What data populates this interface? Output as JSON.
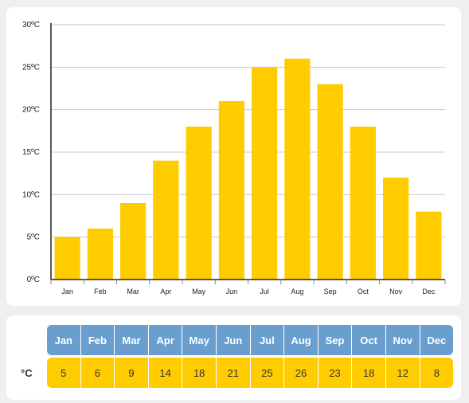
{
  "chart_data": {
    "type": "bar",
    "categories": [
      "Jan",
      "Feb",
      "Mar",
      "Apr",
      "May",
      "Jun",
      "Jul",
      "Aug",
      "Sep",
      "Oct",
      "Nov",
      "Dec"
    ],
    "values": [
      5,
      6,
      9,
      14,
      18,
      21,
      25,
      26,
      23,
      18,
      12,
      8
    ],
    "ylim": [
      0,
      30
    ],
    "yticks": [
      0,
      5,
      10,
      15,
      20,
      25,
      30
    ],
    "ytick_labels": [
      "0ºC",
      "5ºC",
      "10ºC",
      "15ºC",
      "20ºC",
      "25ºC",
      "30ºC"
    ],
    "grid": true,
    "bar_color": "#ffcc00",
    "grid_color": "#c8c8c8"
  },
  "table": {
    "unit_label": "°C",
    "months": [
      "Jan",
      "Feb",
      "Mar",
      "Apr",
      "May",
      "Jun",
      "Jul",
      "Aug",
      "Sep",
      "Oct",
      "Nov",
      "Dec"
    ],
    "temps": [
      "5",
      "6",
      "9",
      "14",
      "18",
      "21",
      "25",
      "26",
      "23",
      "18",
      "12",
      "8"
    ],
    "header_color": "#6a9ecf",
    "value_color": "#ffcc00"
  }
}
